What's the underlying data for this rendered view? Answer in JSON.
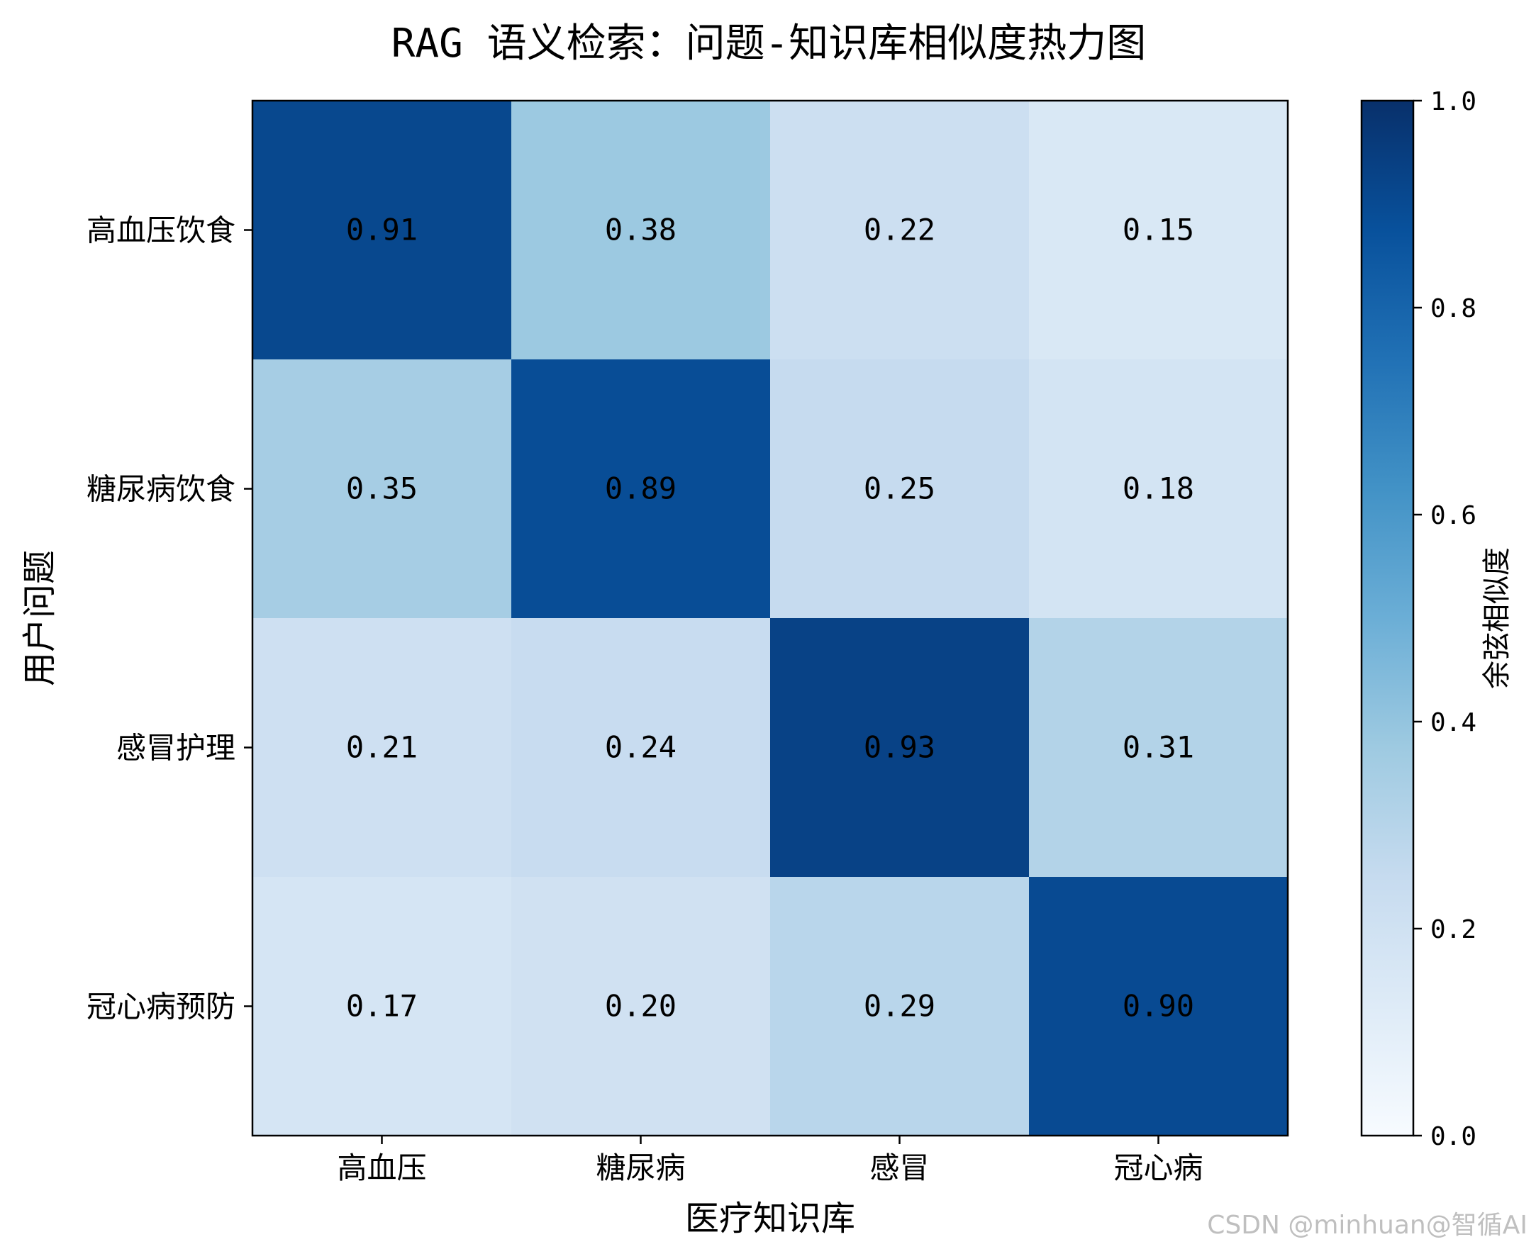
{
  "chart_data": {
    "type": "heatmap",
    "title": "RAG 语义检索：问题-知识库相似度热力图",
    "xlabel": "医疗知识库",
    "ylabel": "用户问题",
    "x_categories": [
      "高血压",
      "糖尿病",
      "感冒",
      "冠心病"
    ],
    "y_categories": [
      "高血压饮食",
      "糖尿病饮食",
      "感冒护理",
      "冠心病预防"
    ],
    "values": [
      [
        0.91,
        0.38,
        0.22,
        0.15
      ],
      [
        0.35,
        0.89,
        0.25,
        0.18
      ],
      [
        0.21,
        0.24,
        0.93,
        0.31
      ],
      [
        0.17,
        0.2,
        0.29,
        0.9
      ]
    ],
    "value_labels": [
      [
        "0.91",
        "0.38",
        "0.22",
        "0.15"
      ],
      [
        "0.35",
        "0.89",
        "0.25",
        "0.18"
      ],
      [
        "0.21",
        "0.24",
        "0.93",
        "0.31"
      ],
      [
        "0.17",
        "0.20",
        "0.29",
        "0.90"
      ]
    ],
    "colormap": "Blues",
    "colorbar": {
      "label": "余弦相似度",
      "range": [
        0.0,
        1.0
      ],
      "ticks": [
        0.0,
        0.2,
        0.4,
        0.6,
        0.8,
        1.0
      ],
      "tick_labels": [
        "0.0",
        "0.2",
        "0.4",
        "0.6",
        "0.8",
        "1.0"
      ]
    },
    "grid": false
  },
  "watermark": "CSDN @minhuan@智循AI"
}
